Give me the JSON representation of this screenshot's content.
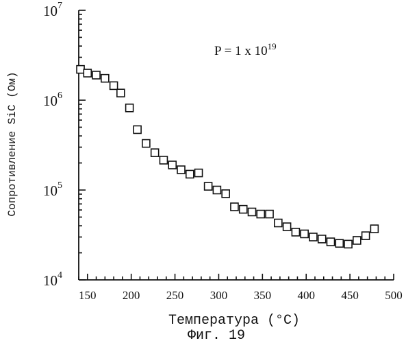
{
  "chart_data": {
    "type": "scatter",
    "marker": "open-square",
    "xlabel": "Температура",
    "xlabel_unit": "(°C)",
    "ylabel": "Сопротивление SiC (Ом)",
    "x_ticks": [
      "150",
      "200",
      "250",
      "300",
      "350",
      "400",
      "450",
      "500"
    ],
    "y_ticks": [
      {
        "value": 10000,
        "base": "10",
        "exp": "4"
      },
      {
        "value": 100000,
        "base": "10",
        "exp": "5"
      },
      {
        "value": 1000000,
        "base": "10",
        "exp": "6"
      },
      {
        "value": 10000000,
        "base": "10",
        "exp": "7"
      }
    ],
    "xlim": [
      140,
      500
    ],
    "ylim": [
      10000,
      10000000
    ],
    "y_scale": "log",
    "grid": false,
    "annotation": {
      "prefix": "P = 1 x 10",
      "exp": "19"
    },
    "caption": "Фиг. 19",
    "series": [
      {
        "points": [
          {
            "x": 142,
            "y": 2200000
          },
          {
            "x": 150,
            "y": 2000000
          },
          {
            "x": 160,
            "y": 1900000
          },
          {
            "x": 170,
            "y": 1750000
          },
          {
            "x": 180,
            "y": 1450000
          },
          {
            "x": 188,
            "y": 1200000
          },
          {
            "x": 198,
            "y": 820000
          },
          {
            "x": 207,
            "y": 470000
          },
          {
            "x": 217,
            "y": 330000
          },
          {
            "x": 227,
            "y": 260000
          },
          {
            "x": 237,
            "y": 215000
          },
          {
            "x": 247,
            "y": 190000
          },
          {
            "x": 257,
            "y": 168000
          },
          {
            "x": 267,
            "y": 150000
          },
          {
            "x": 277,
            "y": 155000
          },
          {
            "x": 288,
            "y": 110000
          },
          {
            "x": 298,
            "y": 100000
          },
          {
            "x": 308,
            "y": 91000
          },
          {
            "x": 318,
            "y": 65000
          },
          {
            "x": 328,
            "y": 61000
          },
          {
            "x": 338,
            "y": 57000
          },
          {
            "x": 348,
            "y": 54000
          },
          {
            "x": 358,
            "y": 54000
          },
          {
            "x": 368,
            "y": 43000
          },
          {
            "x": 378,
            "y": 39000
          },
          {
            "x": 388,
            "y": 34000
          },
          {
            "x": 398,
            "y": 32500
          },
          {
            "x": 408,
            "y": 30000
          },
          {
            "x": 418,
            "y": 28500
          },
          {
            "x": 428,
            "y": 26500
          },
          {
            "x": 438,
            "y": 25500
          },
          {
            "x": 448,
            "y": 25000
          },
          {
            "x": 458,
            "y": 27500
          },
          {
            "x": 468,
            "y": 31000
          },
          {
            "x": 478,
            "y": 37000
          }
        ]
      }
    ]
  }
}
